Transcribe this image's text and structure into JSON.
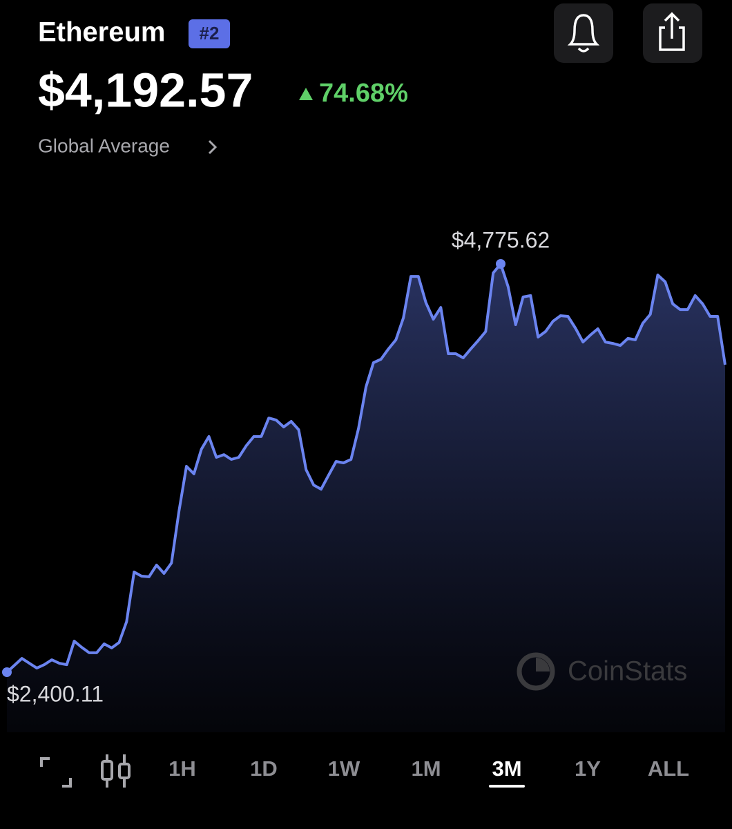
{
  "header": {
    "title": "Ethereum",
    "rank": "#2",
    "price": "$4,192.57",
    "change": "74.68%",
    "source": "Global Average"
  },
  "chart_data": {
    "type": "line",
    "color": "#6b84f0",
    "values": [
      2400.11,
      2440,
      2480,
      2452,
      2424,
      2444,
      2472,
      2452,
      2444,
      2581,
      2545,
      2513,
      2513,
      2565,
      2541,
      2573,
      2694,
      2983,
      2959,
      2955,
      3023,
      2975,
      3035,
      3337,
      3598,
      3554,
      3698,
      3771,
      3650,
      3666,
      3638,
      3650,
      3718,
      3771,
      3771,
      3879,
      3867,
      3827,
      3859,
      3811,
      3578,
      3489,
      3465,
      3546,
      3626,
      3618,
      3638,
      3819,
      4060,
      4201,
      4221,
      4281,
      4334,
      4462,
      4703,
      4703,
      4551,
      4454,
      4522,
      4253,
      4253,
      4229,
      4281,
      4330,
      4382,
      4723,
      4775.62,
      4643,
      4422,
      4583,
      4591,
      4350,
      4382,
      4442,
      4474,
      4470,
      4402,
      4321,
      4362,
      4398,
      4321,
      4313,
      4301,
      4342,
      4334,
      4430,
      4482,
      4711,
      4671,
      4543,
      4510,
      4510,
      4591,
      4543,
      4470,
      4470,
      4189
    ],
    "value_labels": [
      "$2,400.11",
      null,
      null,
      null,
      null,
      null,
      null,
      null,
      null,
      null,
      null,
      null,
      null,
      null,
      null,
      null,
      null,
      null,
      null,
      null,
      null,
      null,
      null,
      null,
      null,
      null,
      null,
      null,
      null,
      null,
      null,
      null,
      null,
      null,
      null,
      null,
      null,
      null,
      null,
      null,
      null,
      null,
      null,
      null,
      null,
      null,
      null,
      null,
      null,
      null,
      null,
      null,
      null,
      null,
      null,
      null,
      null,
      null,
      null,
      null,
      null,
      null,
      null,
      null,
      null,
      null,
      "$4,775.62",
      null,
      null,
      null,
      null,
      null,
      null,
      null,
      null,
      null,
      null,
      null,
      null,
      null,
      null,
      null,
      null,
      null,
      null,
      null,
      null,
      null,
      null,
      null,
      null,
      null,
      null,
      null,
      null,
      null,
      null
    ]
  },
  "watermark": "CoinStats",
  "time_ranges": [
    "1H",
    "1D",
    "1W",
    "1M",
    "3M",
    "1Y",
    "ALL"
  ],
  "selected_range": "3M"
}
